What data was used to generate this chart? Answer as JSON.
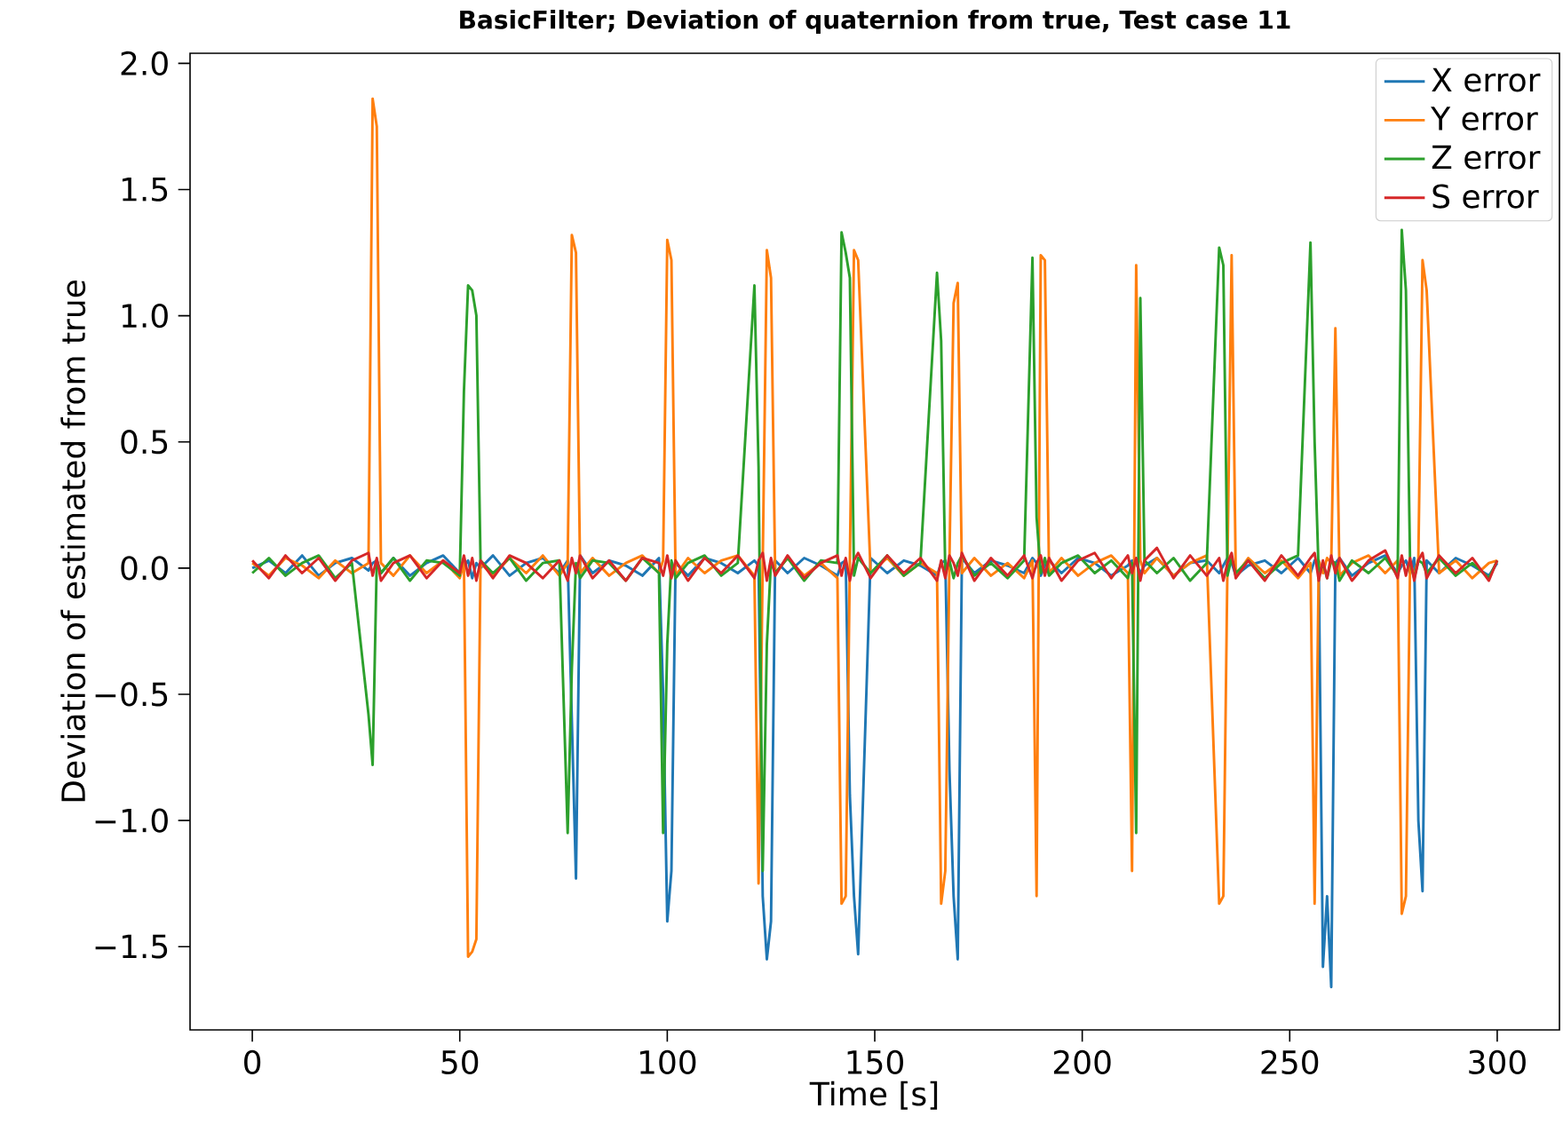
{
  "chart_data": {
    "type": "line",
    "title": "BasicFilter; Deviation of quaternion from true, Test case 11",
    "xlabel": "Time [s]",
    "ylabel": "Deviation of estimated from true",
    "legend": "top right",
    "xlim": [
      -15,
      315
    ],
    "xticks": [
      0,
      50,
      100,
      150,
      200,
      250,
      300
    ],
    "ylim": [
      -1.83,
      2.04
    ],
    "yticks": [
      {
        "value": -1.5,
        "label": "−1.5"
      },
      {
        "value": -1.0,
        "label": "−1.0"
      },
      {
        "value": -0.5,
        "label": "−0.5"
      },
      {
        "value": 0.0,
        "label": "0.0"
      },
      {
        "value": 0.5,
        "label": "0.5"
      },
      {
        "value": 1.0,
        "label": "1.0"
      },
      {
        "value": 1.5,
        "label": "1.5"
      },
      {
        "value": 2.0,
        "label": "2.0"
      }
    ],
    "x": [
      0,
      4,
      8,
      12,
      16,
      20,
      24,
      28,
      29,
      30,
      31,
      34,
      38,
      42,
      46,
      50,
      51,
      52,
      53,
      54,
      55,
      58,
      62,
      66,
      70,
      74,
      76,
      77,
      78,
      79,
      82,
      86,
      90,
      94,
      98,
      99,
      100,
      101,
      102,
      105,
      109,
      113,
      117,
      121,
      122,
      123,
      124,
      125,
      126,
      129,
      133,
      137,
      141,
      142,
      143,
      144,
      145,
      146,
      149,
      153,
      157,
      161,
      165,
      166,
      167,
      168,
      169,
      170,
      171,
      174,
      178,
      182,
      186,
      188,
      189,
      190,
      191,
      192,
      195,
      199,
      203,
      207,
      211,
      212,
      213,
      214,
      215,
      218,
      222,
      226,
      230,
      233,
      234,
      235,
      236,
      237,
      240,
      244,
      248,
      252,
      255,
      256,
      257,
      258,
      259,
      260,
      261,
      262,
      265,
      269,
      273,
      276,
      277,
      278,
      279,
      280,
      281,
      282,
      283,
      286,
      290,
      294,
      298,
      300
    ],
    "series": [
      {
        "name": "X error",
        "color": "#1f77b4",
        "values": [
          0.0,
          0.03,
          -0.02,
          0.05,
          -0.03,
          0.02,
          0.04,
          -0.01,
          0.02,
          0.03,
          -0.02,
          0.04,
          -0.03,
          0.02,
          0.05,
          -0.02,
          0.01,
          0.03,
          -0.04,
          0.02,
          0.0,
          0.05,
          -0.03,
          0.02,
          0.04,
          -0.02,
          0.03,
          -0.6,
          -1.23,
          0.05,
          -0.02,
          0.03,
          0.01,
          -0.03,
          0.04,
          -0.5,
          -1.4,
          -1.2,
          0.02,
          -0.03,
          0.04,
          0.02,
          -0.02,
          0.03,
          0.01,
          -1.3,
          -1.55,
          -1.4,
          0.03,
          -0.02,
          0.04,
          0.01,
          -0.03,
          0.02,
          0.03,
          -0.9,
          -1.3,
          -1.53,
          0.04,
          -0.02,
          0.03,
          0.01,
          -0.03,
          0.02,
          0.03,
          -0.8,
          -1.3,
          -1.55,
          0.04,
          -0.02,
          0.03,
          0.01,
          -0.02,
          0.04,
          0.02,
          -0.03,
          0.01,
          0.03,
          -0.02,
          0.04,
          0.02,
          -0.03,
          0.01,
          0.03,
          0.02,
          -0.02,
          0.01,
          0.04,
          -0.03,
          0.02,
          0.03,
          -0.02,
          0.01,
          0.04,
          0.02,
          -0.03,
          0.01,
          0.03,
          -0.02,
          0.04,
          -0.02,
          0.03,
          0.01,
          -1.58,
          -1.3,
          -1.66,
          0.02,
          0.04,
          -0.03,
          0.02,
          0.05,
          -0.02,
          0.01,
          0.03,
          -0.02,
          0.04,
          -1.0,
          -1.28,
          0.03,
          -0.02,
          0.04,
          0.01,
          -0.03,
          0.02
        ]
      },
      {
        "name": "Y error",
        "color": "#ff7f0e",
        "values": [
          0.02,
          -0.03,
          0.04,
          0.01,
          -0.04,
          0.03,
          -0.02,
          0.02,
          1.86,
          1.75,
          0.02,
          -0.03,
          0.05,
          -0.02,
          0.03,
          -0.04,
          0.02,
          -1.54,
          -1.52,
          -1.47,
          0.02,
          -0.03,
          0.04,
          -0.02,
          0.05,
          -0.03,
          0.02,
          1.32,
          1.25,
          -0.02,
          0.04,
          -0.03,
          0.02,
          0.05,
          -0.02,
          0.03,
          1.3,
          1.22,
          -0.03,
          0.04,
          -0.02,
          0.03,
          0.05,
          -0.03,
          -1.25,
          0.02,
          1.26,
          1.15,
          -0.02,
          0.04,
          -0.03,
          0.02,
          -0.04,
          -1.33,
          -1.3,
          0.03,
          1.26,
          1.22,
          -0.02,
          0.04,
          -0.03,
          0.02,
          -0.02,
          -1.33,
          -1.2,
          0.03,
          1.05,
          1.13,
          -0.02,
          0.04,
          -0.03,
          0.02,
          -0.04,
          0.03,
          -1.3,
          1.24,
          1.22,
          -0.02,
          0.04,
          -0.03,
          0.02,
          0.05,
          -0.02,
          -1.2,
          1.2,
          0.03,
          -0.02,
          0.04,
          -0.03,
          0.02,
          0.05,
          -1.33,
          -1.3,
          0.02,
          1.24,
          -0.03,
          0.04,
          -0.02,
          0.03,
          -0.04,
          0.02,
          -1.33,
          0.03,
          -0.02,
          0.04,
          0.02,
          0.95,
          -0.03,
          0.02,
          0.05,
          -0.02,
          0.03,
          -1.37,
          -1.3,
          0.02,
          -0.03,
          0.04,
          1.22,
          1.1,
          -0.02,
          0.03,
          -0.04,
          0.02,
          0.03
        ]
      },
      {
        "name": "Z error",
        "color": "#2ca02c",
        "values": [
          -0.02,
          0.04,
          -0.03,
          0.02,
          0.05,
          -0.04,
          0.02,
          -0.58,
          -0.78,
          0.03,
          -0.02,
          0.04,
          -0.05,
          0.03,
          0.02,
          -0.03,
          0.7,
          1.12,
          1.1,
          1.0,
          0.03,
          -0.02,
          0.04,
          -0.05,
          0.02,
          0.03,
          -1.05,
          -0.4,
          0.02,
          -0.04,
          0.03,
          0.02,
          -0.05,
          0.04,
          -0.02,
          -1.05,
          -0.3,
          0.03,
          -0.04,
          0.02,
          0.05,
          -0.03,
          0.02,
          1.12,
          0.4,
          -1.2,
          -0.3,
          0.03,
          -0.02,
          0.04,
          -0.05,
          0.03,
          0.02,
          1.33,
          1.25,
          1.15,
          -0.03,
          0.04,
          -0.02,
          0.05,
          -0.03,
          0.02,
          1.17,
          0.9,
          -0.02,
          0.03,
          -0.04,
          0.02,
          0.05,
          -0.03,
          0.02,
          -0.04,
          0.03,
          1.23,
          0.2,
          -0.02,
          0.04,
          -0.03,
          0.02,
          0.05,
          -0.02,
          0.03,
          -0.04,
          0.02,
          -1.05,
          1.07,
          0.03,
          -0.02,
          0.04,
          -0.05,
          0.02,
          1.27,
          1.2,
          -0.03,
          0.04,
          -0.02,
          0.03,
          -0.04,
          0.02,
          0.05,
          1.29,
          0.5,
          -0.03,
          0.02,
          -0.04,
          0.03,
          0.02,
          -0.05,
          0.03,
          -0.02,
          0.04,
          -0.03,
          1.34,
          1.1,
          0.02,
          -0.04,
          0.03,
          0.02,
          -0.02,
          0.04,
          -0.03,
          0.02,
          -0.04,
          0.03
        ]
      },
      {
        "name": "S error",
        "color": "#d62728",
        "values": [
          0.03,
          -0.04,
          0.05,
          -0.02,
          0.04,
          -0.05,
          0.03,
          0.06,
          -0.03,
          0.04,
          -0.05,
          0.02,
          0.05,
          -0.04,
          0.03,
          -0.02,
          0.05,
          -0.03,
          0.04,
          -0.05,
          0.03,
          -0.04,
          0.05,
          0.02,
          -0.04,
          0.03,
          -0.05,
          0.04,
          -0.02,
          0.05,
          -0.04,
          0.03,
          -0.05,
          0.04,
          0.02,
          -0.03,
          0.05,
          -0.04,
          0.03,
          -0.05,
          0.04,
          -0.02,
          0.05,
          -0.04,
          0.03,
          0.06,
          -0.05,
          0.04,
          -0.03,
          0.05,
          -0.04,
          0.02,
          0.05,
          -0.03,
          0.04,
          -0.05,
          0.03,
          0.06,
          -0.04,
          0.05,
          -0.02,
          0.04,
          -0.05,
          0.03,
          -0.04,
          0.05,
          0.02,
          -0.03,
          0.06,
          -0.05,
          0.04,
          -0.03,
          0.05,
          -0.04,
          0.02,
          0.05,
          -0.03,
          0.04,
          -0.05,
          0.03,
          0.06,
          -0.04,
          0.05,
          -0.02,
          0.04,
          -0.05,
          0.03,
          0.08,
          -0.04,
          0.05,
          -0.03,
          0.04,
          -0.05,
          0.02,
          0.06,
          -0.04,
          0.03,
          -0.05,
          0.05,
          -0.03,
          0.04,
          0.06,
          -0.05,
          0.03,
          -0.04,
          0.05,
          -0.02,
          0.04,
          -0.05,
          0.03,
          0.07,
          -0.04,
          0.05,
          -0.03,
          0.04,
          -0.05,
          0.03,
          0.06,
          -0.04,
          0.05,
          -0.02,
          0.04,
          -0.05,
          0.03
        ]
      }
    ]
  }
}
